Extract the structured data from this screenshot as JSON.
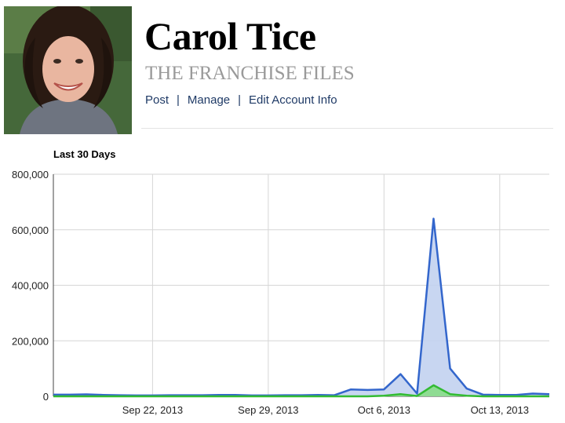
{
  "header": {
    "name": "Carol Tice",
    "blog_title": "THE FRANCHISE FILES",
    "nav": [
      {
        "label": "Post"
      },
      {
        "label": "Manage"
      },
      {
        "label": "Edit Account Info"
      }
    ],
    "nav_separator": "|"
  },
  "chart_data": {
    "type": "area",
    "title": "Last 30 Days",
    "xlabel": "",
    "ylabel": "",
    "x_start": "2013-09-16",
    "x_end": "2013-10-16",
    "x_ticks": [
      "Sep 22, 2013",
      "Sep 29, 2013",
      "Oct 6, 2013",
      "Oct 13, 2013"
    ],
    "y_ticks": [
      "0",
      "200,000",
      "400,000",
      "600,000",
      "800,000"
    ],
    "ylim": [
      0,
      800000
    ],
    "grid": true,
    "legend": "none",
    "x": [
      "2013-09-16",
      "2013-09-17",
      "2013-09-18",
      "2013-09-19",
      "2013-09-20",
      "2013-09-21",
      "2013-09-22",
      "2013-09-23",
      "2013-09-24",
      "2013-09-25",
      "2013-09-26",
      "2013-09-27",
      "2013-09-28",
      "2013-09-29",
      "2013-09-30",
      "2013-10-01",
      "2013-10-02",
      "2013-10-03",
      "2013-10-04",
      "2013-10-05",
      "2013-10-06",
      "2013-10-07",
      "2013-10-08",
      "2013-10-09",
      "2013-10-10",
      "2013-10-11",
      "2013-10-12",
      "2013-10-13",
      "2013-10-14",
      "2013-10-15",
      "2013-10-16"
    ],
    "series": [
      {
        "color": "#3366cc",
        "fill": "#c2d1f0",
        "values": [
          6000,
          6000,
          7000,
          5000,
          4000,
          3000,
          3000,
          4000,
          4000,
          4000,
          5000,
          5000,
          3000,
          3000,
          4000,
          4000,
          5000,
          4000,
          25000,
          23000,
          25000,
          80000,
          10000,
          640000,
          100000,
          28000,
          6000,
          5000,
          5000,
          10000,
          8000
        ]
      },
      {
        "color": "#33bb33",
        "fill": "#88dd88",
        "values": [
          0,
          0,
          0,
          0,
          0,
          0,
          0,
          0,
          0,
          0,
          0,
          0,
          0,
          0,
          0,
          0,
          0,
          0,
          0,
          0,
          2000,
          8000,
          1000,
          40000,
          8000,
          2000,
          0,
          0,
          0,
          0,
          0
        ]
      }
    ]
  }
}
